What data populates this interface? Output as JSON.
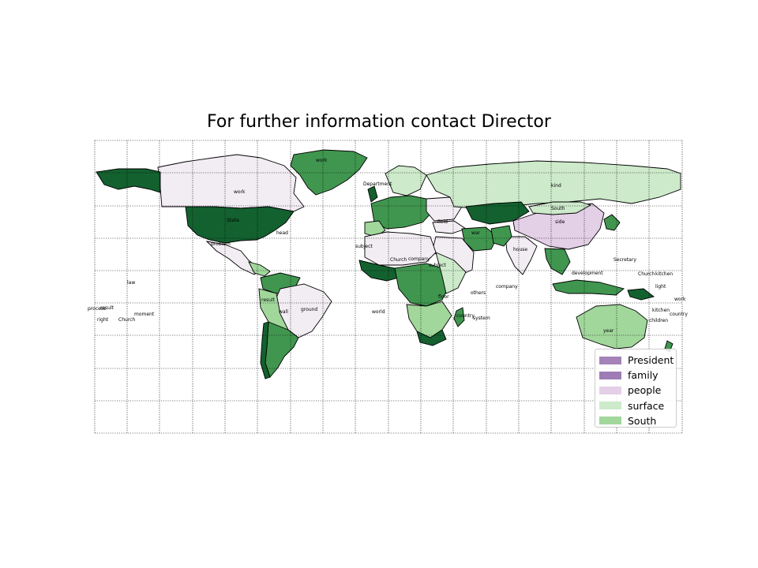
{
  "title": "For further information contact Director",
  "legend": [
    {
      "label": "President",
      "color": "#a483b9"
    },
    {
      "label": "family",
      "color": "#9e7cb5"
    },
    {
      "label": "people",
      "color": "#e3cfe6"
    },
    {
      "label": "surface",
      "color": "#cdeacb"
    },
    {
      "label": "South",
      "color": "#a1d79b"
    }
  ],
  "colors": {
    "dark_green": "#13612f",
    "mid_green": "#40964f",
    "light_green": "#a1d79b",
    "pale_green": "#cdeacb",
    "pale_purple": "#f2ecf3",
    "light_purple": "#e3cfe6",
    "purple": "#a483b9"
  },
  "labels": [
    "work",
    "Department",
    "kind",
    "South",
    "side",
    "State",
    "head",
    "work",
    "problem",
    "Secretary",
    "development",
    "Church",
    "kitchen",
    "light",
    "work",
    "kitchen",
    "country",
    "children",
    "year",
    "company",
    "others",
    "country",
    "system",
    "ground",
    "wall",
    "result",
    "law",
    "process",
    "result",
    "right",
    "Church",
    "moment",
    "house",
    "war",
    "field",
    "company",
    "subject",
    "floor",
    "Church",
    "subject",
    "world"
  ]
}
